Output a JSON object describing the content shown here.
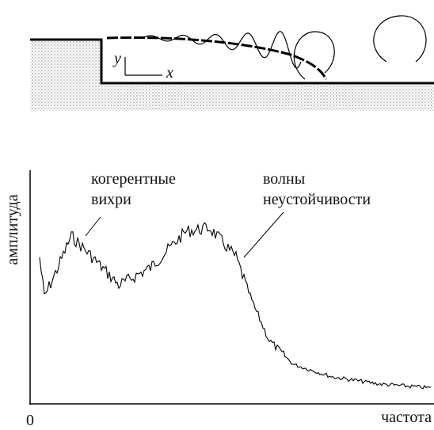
{
  "diagram": {
    "y_label": "y",
    "x_label": "x"
  },
  "spectrum": {
    "y_axis_label": "амплитуда",
    "x_axis_label": "частота",
    "origin_label": "0",
    "annotations": [
      {
        "lines": [
          "когерентные",
          "вихри"
        ]
      },
      {
        "lines": [
          "волны",
          "неустойчивости"
        ]
      }
    ]
  }
}
